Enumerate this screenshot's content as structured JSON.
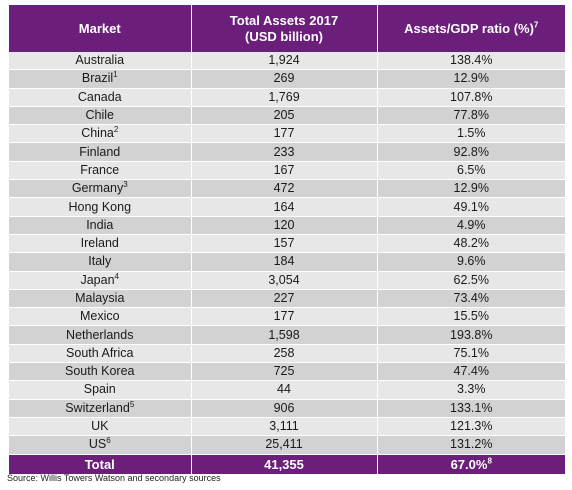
{
  "table": {
    "headers": {
      "market": "Market",
      "assets_line1": "Total Assets 2017",
      "assets_line2": "(USD billion)",
      "ratio": "Assets/GDP ratio (%)",
      "ratio_note": "7"
    },
    "rows": [
      {
        "market": "Australia",
        "note": "",
        "assets": "1,924",
        "ratio": "138.4%"
      },
      {
        "market": "Brazil",
        "note": "1",
        "assets": "269",
        "ratio": "12.9%"
      },
      {
        "market": "Canada",
        "note": "",
        "assets": "1,769",
        "ratio": "107.8%"
      },
      {
        "market": "Chile",
        "note": "",
        "assets": "205",
        "ratio": "77.8%"
      },
      {
        "market": "China",
        "note": "2",
        "assets": "177",
        "ratio": "1.5%"
      },
      {
        "market": "Finland",
        "note": "",
        "assets": "233",
        "ratio": "92.8%"
      },
      {
        "market": "France",
        "note": "",
        "assets": "167",
        "ratio": "6.5%"
      },
      {
        "market": "Germany",
        "note": "3",
        "assets": "472",
        "ratio": "12.9%"
      },
      {
        "market": "Hong Kong",
        "note": "",
        "assets": "164",
        "ratio": "49.1%"
      },
      {
        "market": "India",
        "note": "",
        "assets": "120",
        "ratio": "4.9%"
      },
      {
        "market": "Ireland",
        "note": "",
        "assets": "157",
        "ratio": "48.2%"
      },
      {
        "market": "Italy",
        "note": "",
        "assets": "184",
        "ratio": "9.6%"
      },
      {
        "market": "Japan",
        "note": "4",
        "assets": "3,054",
        "ratio": "62.5%"
      },
      {
        "market": "Malaysia",
        "note": "",
        "assets": "227",
        "ratio": "73.4%"
      },
      {
        "market": "Mexico",
        "note": "",
        "assets": "177",
        "ratio": "15.5%"
      },
      {
        "market": "Netherlands",
        "note": "",
        "assets": "1,598",
        "ratio": "193.8%"
      },
      {
        "market": "South Africa",
        "note": "",
        "assets": "258",
        "ratio": "75.1%"
      },
      {
        "market": "South Korea",
        "note": "",
        "assets": "725",
        "ratio": "47.4%"
      },
      {
        "market": "Spain",
        "note": "",
        "assets": "44",
        "ratio": "3.3%"
      },
      {
        "market": "Switzerland",
        "note": "5",
        "assets": "906",
        "ratio": "133.1%"
      },
      {
        "market": "UK",
        "note": "",
        "assets": "3,111",
        "ratio": "121.3%"
      },
      {
        "market": "US",
        "note": "6",
        "assets": "25,411",
        "ratio": "131.2%"
      }
    ],
    "total": {
      "label": "Total",
      "assets": "41,355",
      "ratio": "67.0%",
      "ratio_note": "8"
    }
  },
  "source": "Source: Willis Towers Watson and secondary sources",
  "colors": {
    "header_bg": "#6b1f7a",
    "row_light": "#e7e7e7",
    "row_dark": "#d2d2d2"
  }
}
